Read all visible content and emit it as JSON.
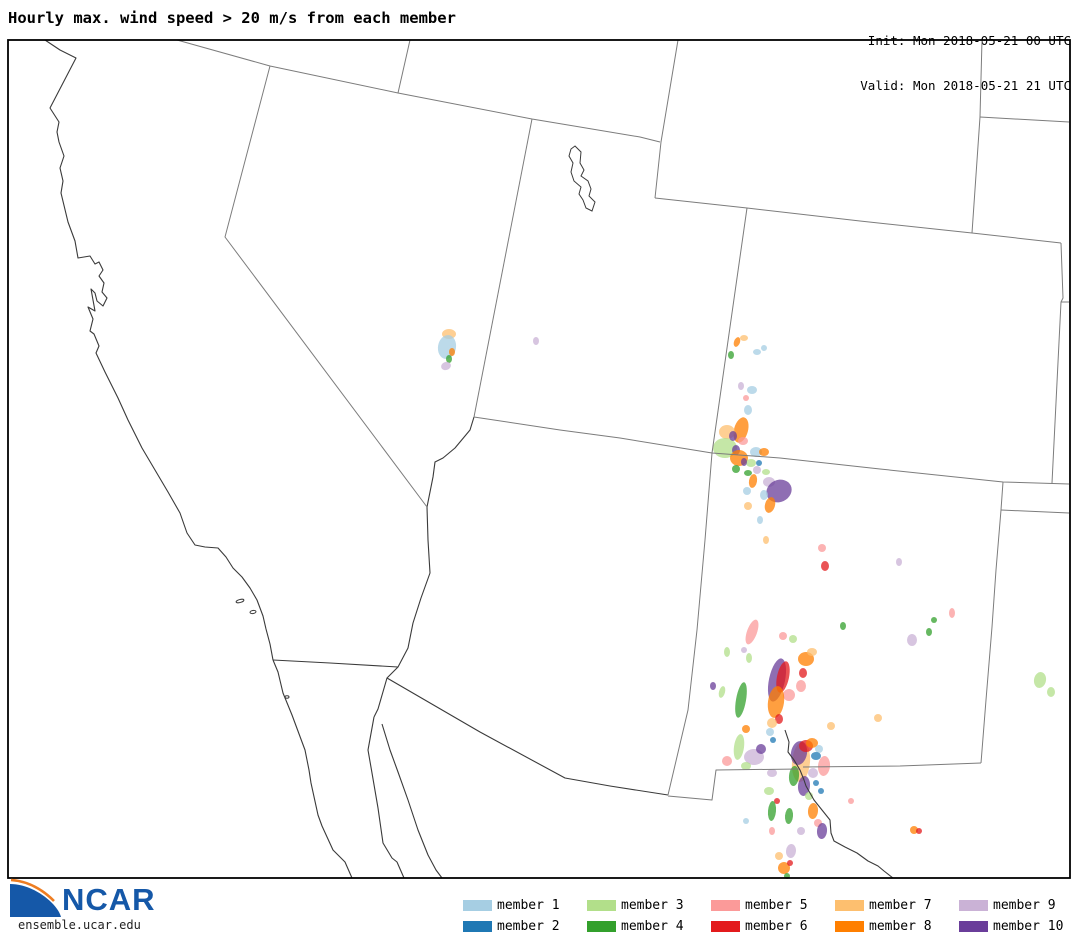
{
  "header": {
    "title": "Hourly max. wind speed > 20 m/s from each member",
    "init_line": "Init: Mon 2018-05-21 00 UTC",
    "valid_line": "Valid: Mon 2018-05-21 21 UTC"
  },
  "footer": {
    "logo_text": "NCAR",
    "site_url": "ensemble.ucar.edu",
    "logo_blue": "#1558a8",
    "logo_orange": "#ee7d22"
  },
  "legend": {
    "members": [
      {
        "label": "member 1",
        "color": "#a6cee3"
      },
      {
        "label": "member 2",
        "color": "#1f78b4"
      },
      {
        "label": "member 3",
        "color": "#b2df8a"
      },
      {
        "label": "member 4",
        "color": "#33a02c"
      },
      {
        "label": "member 5",
        "color": "#fb9a99"
      },
      {
        "label": "member 6",
        "color": "#e31a1c"
      },
      {
        "label": "member 7",
        "color": "#fdbf6f"
      },
      {
        "label": "member 8",
        "color": "#ff7f00"
      },
      {
        "label": "member 9",
        "color": "#cab2d6"
      },
      {
        "label": "member 10",
        "color": "#6a3d9a"
      }
    ]
  },
  "chart_data": {
    "type": "map-contour-overlay",
    "title": "Hourly max. wind speed > 20 m/s from each member",
    "region": "Southwestern United States and northern Mexico",
    "init_time": "Mon 2018-05-21 00 UTC",
    "valid_time": "Mon 2018-05-21 21 UTC",
    "threshold": "wind speed > 20 m/s",
    "fill_opacity": 0.75,
    "blobs": [
      [
        7,
        449,
        334,
        7,
        5,
        0
      ],
      [
        1,
        447,
        347,
        9,
        12,
        10
      ],
      [
        8,
        452,
        352,
        3,
        4,
        0
      ],
      [
        4,
        449,
        359,
        3,
        4,
        0
      ],
      [
        9,
        446,
        366,
        5,
        4,
        -20
      ],
      [
        9,
        536,
        341,
        3,
        4,
        0
      ],
      [
        8,
        737,
        342,
        3,
        5,
        20
      ],
      [
        7,
        744,
        338,
        4,
        3,
        0
      ],
      [
        4,
        731,
        355,
        3,
        4,
        0
      ],
      [
        1,
        757,
        352,
        4,
        3,
        0
      ],
      [
        1,
        764,
        348,
        3,
        3,
        0
      ],
      [
        9,
        741,
        386,
        3,
        4,
        0
      ],
      [
        1,
        752,
        390,
        5,
        4,
        0
      ],
      [
        5,
        746,
        398,
        3,
        3,
        0
      ],
      [
        1,
        748,
        410,
        4,
        5,
        0
      ],
      [
        8,
        741,
        430,
        7,
        13,
        15
      ],
      [
        7,
        727,
        432,
        8,
        7,
        0
      ],
      [
        3,
        725,
        448,
        12,
        10,
        0
      ],
      [
        10,
        733,
        436,
        4,
        5,
        0
      ],
      [
        5,
        743,
        441,
        5,
        4,
        0
      ],
      [
        10,
        736,
        450,
        4,
        5,
        0
      ],
      [
        8,
        739,
        458,
        9,
        8,
        0
      ],
      [
        1,
        756,
        452,
        6,
        5,
        0
      ],
      [
        8,
        764,
        452,
        5,
        4,
        0
      ],
      [
        3,
        751,
        463,
        5,
        4,
        0
      ],
      [
        2,
        759,
        463,
        3,
        3,
        0
      ],
      [
        4,
        736,
        469,
        4,
        4,
        0
      ],
      [
        4,
        748,
        473,
        4,
        3,
        0
      ],
      [
        9,
        757,
        470,
        4,
        4,
        0
      ],
      [
        10,
        744,
        462,
        3,
        4,
        0
      ],
      [
        8,
        753,
        481,
        4,
        7,
        10
      ],
      [
        1,
        747,
        491,
        4,
        4,
        0
      ],
      [
        9,
        769,
        482,
        6,
        5,
        0
      ],
      [
        10,
        779,
        491,
        13,
        11,
        -25
      ],
      [
        7,
        748,
        506,
        4,
        4,
        0
      ],
      [
        3,
        766,
        472,
        4,
        3,
        0
      ],
      [
        1,
        764,
        495,
        4,
        5,
        0
      ],
      [
        8,
        770,
        505,
        5,
        8,
        15
      ],
      [
        1,
        760,
        520,
        3,
        4,
        0
      ],
      [
        7,
        766,
        540,
        3,
        4,
        0
      ],
      [
        5,
        822,
        548,
        4,
        4,
        0
      ],
      [
        6,
        825,
        566,
        4,
        5,
        0
      ],
      [
        9,
        899,
        562,
        3,
        4,
        0
      ],
      [
        9,
        912,
        640,
        5,
        6,
        0
      ],
      [
        4,
        929,
        632,
        3,
        4,
        0
      ],
      [
        4,
        934,
        620,
        3,
        3,
        0
      ],
      [
        3,
        1040,
        680,
        6,
        8,
        10
      ],
      [
        3,
        1051,
        692,
        4,
        5,
        0
      ],
      [
        5,
        952,
        613,
        3,
        5,
        0
      ],
      [
        5,
        752,
        632,
        5,
        13,
        20
      ],
      [
        5,
        783,
        636,
        4,
        4,
        0
      ],
      [
        3,
        793,
        639,
        4,
        4,
        0
      ],
      [
        4,
        843,
        626,
        3,
        4,
        0
      ],
      [
        3,
        727,
        652,
        3,
        5,
        0
      ],
      [
        9,
        744,
        650,
        3,
        3,
        0
      ],
      [
        3,
        749,
        658,
        3,
        5,
        0
      ],
      [
        8,
        806,
        659,
        8,
        7,
        0
      ],
      [
        7,
        812,
        652,
        5,
        4,
        0
      ],
      [
        6,
        803,
        673,
        4,
        5,
        0
      ],
      [
        5,
        801,
        686,
        5,
        6,
        0
      ],
      [
        10,
        713,
        686,
        3,
        4,
        0
      ],
      [
        3,
        722,
        692,
        3,
        6,
        15
      ],
      [
        10,
        777,
        680,
        8,
        22,
        12
      ],
      [
        6,
        783,
        677,
        6,
        16,
        12
      ],
      [
        5,
        789,
        695,
        6,
        6,
        0
      ],
      [
        8,
        776,
        702,
        8,
        16,
        8
      ],
      [
        6,
        779,
        719,
        4,
        5,
        0
      ],
      [
        7,
        772,
        723,
        5,
        5,
        0
      ],
      [
        1,
        770,
        732,
        4,
        4,
        0
      ],
      [
        2,
        773,
        740,
        3,
        3,
        0
      ],
      [
        4,
        741,
        700,
        5,
        18,
        10
      ],
      [
        8,
        746,
        729,
        4,
        4,
        0
      ],
      [
        3,
        739,
        747,
        5,
        13,
        8
      ],
      [
        7,
        831,
        726,
        4,
        4,
        0
      ],
      [
        7,
        878,
        718,
        4,
        4,
        0
      ],
      [
        9,
        754,
        757,
        10,
        8,
        0
      ],
      [
        10,
        761,
        749,
        5,
        5,
        0
      ],
      [
        5,
        727,
        761,
        5,
        5,
        0
      ],
      [
        3,
        746,
        766,
        5,
        4,
        0
      ],
      [
        9,
        772,
        773,
        5,
        4,
        0
      ],
      [
        3,
        769,
        791,
        5,
        4,
        0
      ],
      [
        6,
        777,
        801,
        3,
        3,
        0
      ],
      [
        4,
        772,
        811,
        4,
        10,
        5
      ],
      [
        4,
        789,
        816,
        4,
        8,
        5
      ],
      [
        7,
        801,
        762,
        9,
        20,
        5
      ],
      [
        10,
        799,
        753,
        8,
        12,
        10
      ],
      [
        6,
        806,
        746,
        7,
        6,
        0
      ],
      [
        8,
        812,
        743,
        6,
        5,
        0
      ],
      [
        1,
        819,
        749,
        4,
        4,
        0
      ],
      [
        2,
        816,
        756,
        5,
        4,
        0
      ],
      [
        4,
        794,
        776,
        5,
        10,
        5
      ],
      [
        10,
        804,
        786,
        6,
        10,
        5
      ],
      [
        5,
        824,
        766,
        6,
        10,
        5
      ],
      [
        9,
        813,
        773,
        5,
        5,
        0
      ],
      [
        2,
        816,
        783,
        3,
        3,
        0
      ],
      [
        2,
        821,
        791,
        3,
        3,
        0
      ],
      [
        3,
        809,
        796,
        4,
        4,
        0
      ],
      [
        8,
        813,
        811,
        5,
        8,
        5
      ],
      [
        5,
        818,
        823,
        4,
        4,
        0
      ],
      [
        10,
        822,
        831,
        5,
        8,
        5
      ],
      [
        9,
        801,
        831,
        4,
        4,
        0
      ],
      [
        1,
        746,
        821,
        3,
        3,
        0
      ],
      [
        5,
        772,
        831,
        3,
        4,
        0
      ],
      [
        9,
        791,
        851,
        5,
        7,
        5
      ],
      [
        7,
        779,
        856,
        4,
        4,
        0
      ],
      [
        8,
        784,
        868,
        6,
        6,
        0
      ],
      [
        6,
        790,
        863,
        3,
        3,
        0
      ],
      [
        4,
        787,
        876,
        3,
        3,
        0
      ],
      [
        5,
        851,
        801,
        3,
        3,
        0
      ],
      [
        8,
        914,
        830,
        4,
        4,
        0
      ],
      [
        6,
        919,
        831,
        3,
        3,
        0
      ]
    ]
  }
}
